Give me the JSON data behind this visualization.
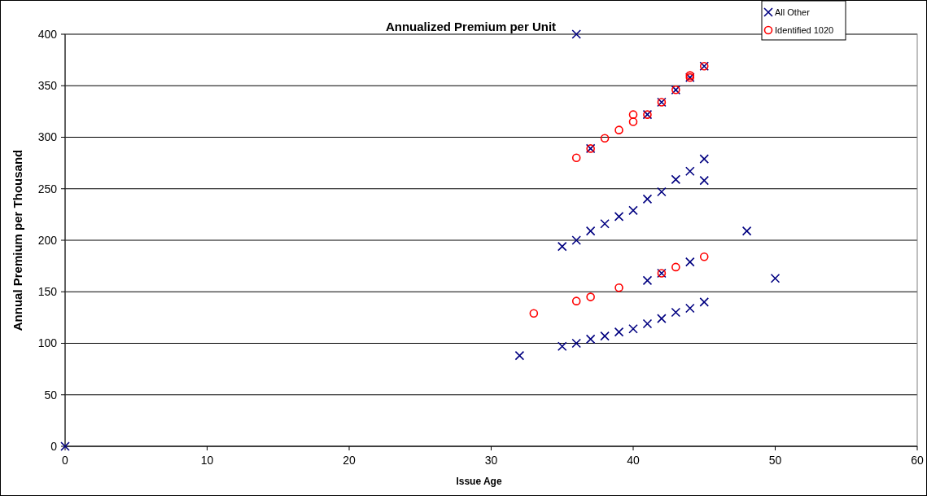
{
  "chart_data": {
    "type": "scatter",
    "title": "Annualized Premium per Unit",
    "xlabel": "Issue Age",
    "ylabel": "Annual Premium per Thousand",
    "xlim": [
      0,
      60
    ],
    "xticks": [
      0,
      10,
      20,
      30,
      40,
      50,
      60
    ],
    "ylim": [
      0,
      400
    ],
    "yticks": [
      0,
      50,
      100,
      150,
      200,
      250,
      300,
      350,
      400
    ],
    "grid": "y",
    "legend": "top right",
    "series": [
      {
        "name": "All Other",
        "color": "#000080",
        "marker": "cross",
        "x": [
          0,
          32,
          35,
          36,
          37,
          38,
          39,
          40,
          41,
          42,
          43,
          44,
          45,
          35,
          36,
          37,
          38,
          39,
          40,
          41,
          42,
          43,
          44,
          45,
          45,
          36,
          37,
          41,
          42,
          43,
          44,
          45,
          41,
          42,
          44,
          48,
          50
        ],
        "values": [
          0,
          88,
          97,
          100,
          104,
          107,
          111,
          114,
          119,
          124,
          130,
          134,
          140,
          194,
          200,
          209,
          216,
          223,
          229,
          240,
          247,
          259,
          267,
          279,
          258,
          400,
          289,
          322,
          334,
          346,
          358,
          369,
          161,
          168,
          179,
          209,
          163
        ]
      },
      {
        "name": "Identified 1020",
        "color": "#ff0000",
        "marker": "circle",
        "x": [
          33,
          36,
          37,
          39,
          42,
          43,
          45,
          36,
          37,
          38,
          39,
          40,
          40,
          41,
          42,
          43,
          44,
          44,
          45
        ],
        "values": [
          129,
          141,
          145,
          154,
          168,
          174,
          184,
          280,
          289,
          299,
          307,
          315,
          322,
          322,
          334,
          346,
          358,
          360,
          369
        ]
      }
    ]
  }
}
